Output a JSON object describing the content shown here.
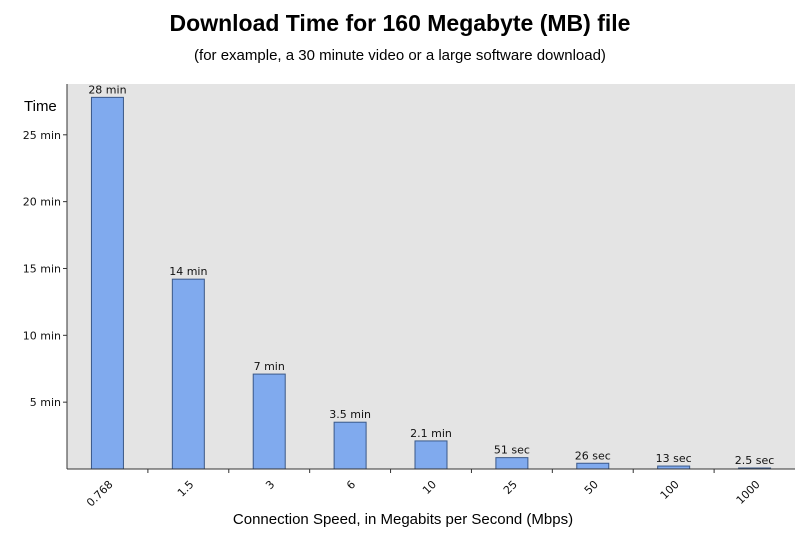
{
  "chart_data": {
    "type": "bar",
    "title": "Download Time for 160 Megabyte (MB) file",
    "subtitle": "(for example, a 30 minute video or a large software download)",
    "xlabel": "Connection Speed, in Megabits per Second (Mbps)",
    "ylabel": "Time",
    "categories": [
      "0.768",
      "1.5",
      "3",
      "6",
      "10",
      "25",
      "50",
      "100",
      "1000"
    ],
    "values_min": [
      27.8,
      14.2,
      7.1,
      3.5,
      2.1,
      0.85,
      0.43,
      0.22,
      0.04
    ],
    "data_labels": [
      "28 min",
      "14 min",
      "7 min",
      "3.5 min",
      "2.1 min",
      "51 sec",
      "26 sec",
      "13 sec",
      "2.5 sec"
    ],
    "yticks": [
      {
        "value": 5,
        "label": "5 min"
      },
      {
        "value": 10,
        "label": "10 min"
      },
      {
        "value": 15,
        "label": "15 min"
      },
      {
        "value": 20,
        "label": "20 min"
      },
      {
        "value": 25,
        "label": "25 min"
      }
    ],
    "ylim": [
      0,
      28.8
    ],
    "grid": false,
    "colors": {
      "plot_background": "#e4e4e4",
      "bar_fill": "#80aaee",
      "bar_stroke": "#3a5888",
      "axis": "#333333"
    }
  }
}
